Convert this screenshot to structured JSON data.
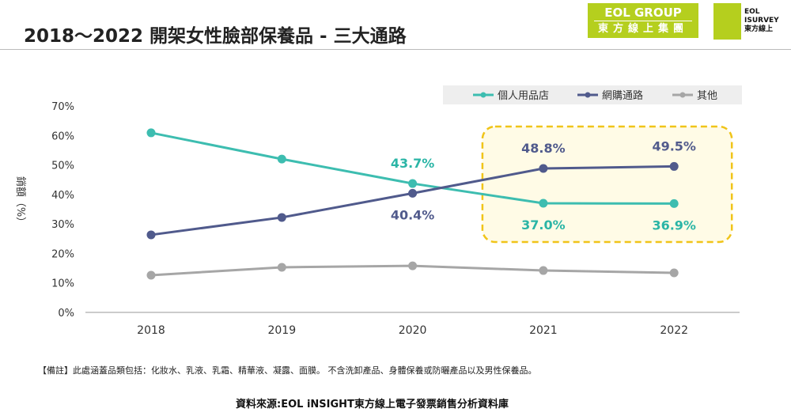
{
  "title": "2018～2022 開架女性臉部保養品 - 三大通路",
  "logos": {
    "group_en": "EOL GROUP",
    "group_zh": "東方線上集團",
    "survey": "EOL ISURVEY 東方線上"
  },
  "note": "【備註】此處涵蓋品類包括：化妝水、乳液、乳霜、精華液、凝露、面膜。 不含洗卸產品、身體保養或防曬產品以及男性保養品。",
  "source": "資料來源:EOL iNSIGHT東方線上電子發票銷售分析資料庫",
  "chart_data": {
    "type": "line",
    "categories": [
      "2018",
      "2019",
      "2020",
      "2021",
      "2022"
    ],
    "ylabel": "銷額（%）",
    "ylim": [
      0,
      70
    ],
    "yticks": [
      "0%",
      "10%",
      "20%",
      "30%",
      "40%",
      "50%",
      "60%",
      "70%"
    ],
    "legend_position": "top-right",
    "grid": false,
    "series": [
      {
        "name": "個人用品店",
        "color": "#3dbdb0",
        "values": [
          60.9,
          52.0,
          43.7,
          37.0,
          36.9
        ],
        "labels": [
          "",
          "",
          "43.7%",
          "37.0%",
          "36.9%"
        ]
      },
      {
        "name": "網購通路",
        "color": "#505a8c",
        "values": [
          26.3,
          32.2,
          40.4,
          48.8,
          49.5
        ],
        "labels": [
          "",
          "",
          "40.4%",
          "48.8%",
          "49.5%"
        ]
      },
      {
        "name": "其他",
        "color": "#a6a6a6",
        "values": [
          12.6,
          15.3,
          15.8,
          14.2,
          13.4
        ],
        "labels": [
          "",
          "",
          "",
          "",
          ""
        ]
      }
    ],
    "highlight": {
      "categories": [
        "2021",
        "2022"
      ],
      "color": "#f0c419"
    }
  }
}
